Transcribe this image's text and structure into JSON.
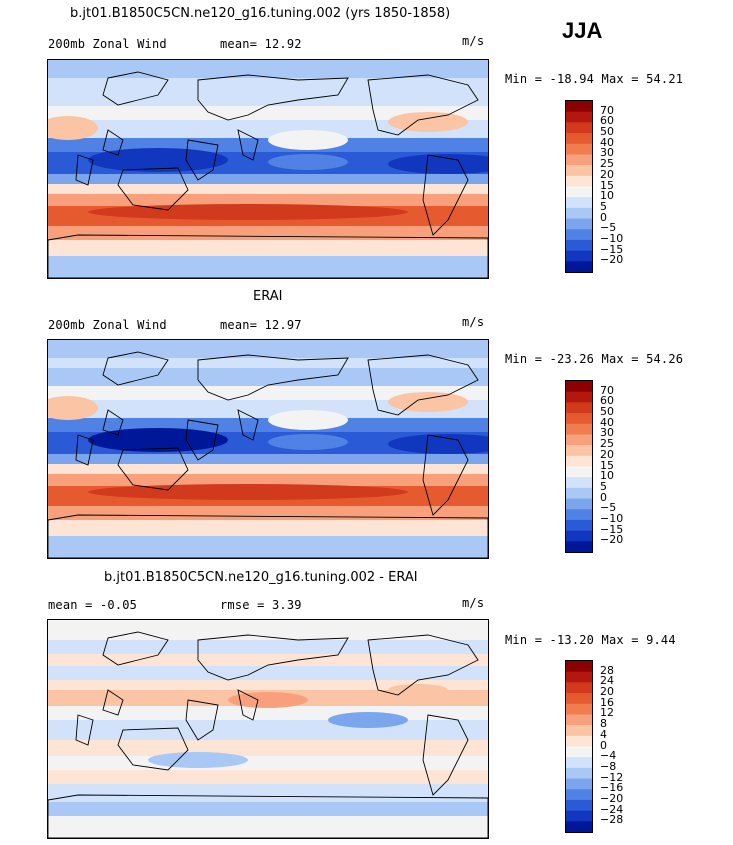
{
  "season": "JJA",
  "panels": [
    {
      "title": "b.jt01.B1850C5CN.ne120_g16.tuning.002 (yrs 1850-1858)",
      "left_label": "200mb Zonal Wind",
      "stat_label": "mean=  12.92",
      "units": "m/s",
      "minmax": "Min = -18.94 Max =  54.21",
      "colorbar": [
        "70",
        "60",
        "50",
        "40",
        "30",
        "25",
        "20",
        "15",
        "10",
        "5",
        "0",
        "−5",
        "−10",
        "−15",
        "−20"
      ],
      "kind": "model"
    },
    {
      "title": "ERAI",
      "left_label": "200mb Zonal Wind",
      "stat_label": "mean=  12.97",
      "units": "m/s",
      "minmax": "Min = -23.26 Max =  54.26",
      "colorbar": [
        "70",
        "60",
        "50",
        "40",
        "30",
        "25",
        "20",
        "15",
        "10",
        "5",
        "0",
        "−5",
        "−10",
        "−15",
        "−20"
      ],
      "kind": "obs"
    },
    {
      "title": "b.jt01.B1850C5CN.ne120_g16.tuning.002 - ERAI",
      "left_label": "mean =  -0.05",
      "stat_label": "rmse =   3.39",
      "units": "m/s",
      "minmax": "Min = -13.20 Max =   9.44",
      "colorbar": [
        "28",
        "24",
        "20",
        "16",
        "12",
        "8",
        "4",
        "0",
        "−4",
        "−8",
        "−12",
        "−16",
        "−20",
        "−24",
        "−28"
      ],
      "kind": "diff"
    }
  ],
  "colors": {
    "full_scale": [
      "#8b0000",
      "#b3170d",
      "#d13a1c",
      "#e55a2e",
      "#f07d50",
      "#f7a07b",
      "#fbc4a5",
      "#fde4d4",
      "#f3f3f3",
      "#d2e2fa",
      "#a9c8f5",
      "#7ba6ee",
      "#4f82e4",
      "#2a5ad6",
      "#1137bf",
      "#00179a"
    ],
    "land_outline": "#000000"
  }
}
